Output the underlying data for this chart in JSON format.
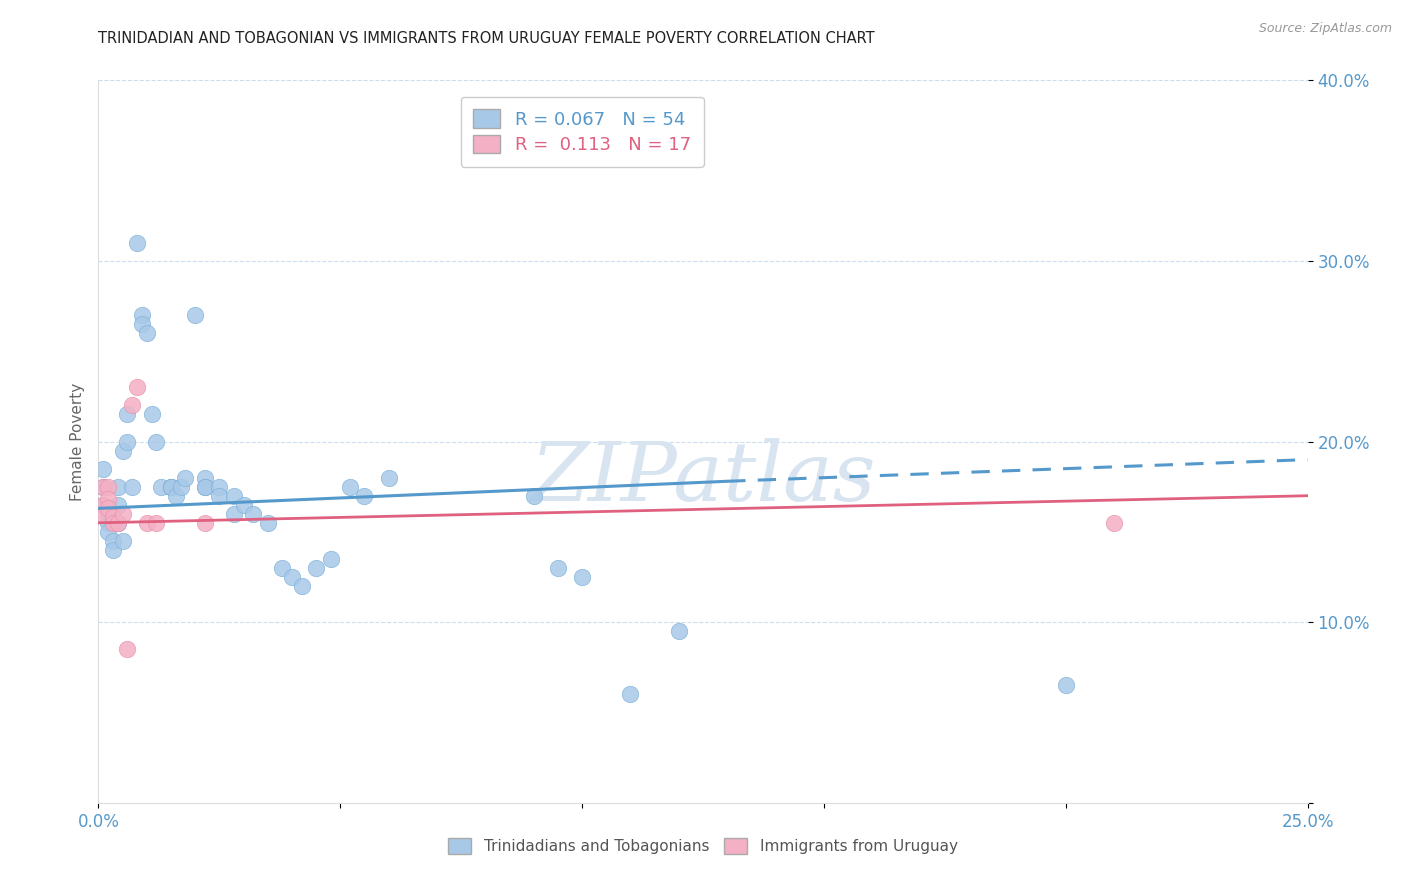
{
  "title": "TRINIDADIAN AND TOBAGONIAN VS IMMIGRANTS FROM URUGUAY FEMALE POVERTY CORRELATION CHART",
  "source": "Source: ZipAtlas.com",
  "ylabel": "Female Poverty",
  "x_min": 0.0,
  "x_max": 0.25,
  "y_min": 0.0,
  "y_max": 0.4,
  "blue_scatter": [
    [
      0.001,
      0.185
    ],
    [
      0.001,
      0.175
    ],
    [
      0.001,
      0.165
    ],
    [
      0.002,
      0.16
    ],
    [
      0.002,
      0.155
    ],
    [
      0.002,
      0.15
    ],
    [
      0.003,
      0.145
    ],
    [
      0.003,
      0.14
    ],
    [
      0.003,
      0.16
    ],
    [
      0.004,
      0.175
    ],
    [
      0.004,
      0.165
    ],
    [
      0.004,
      0.155
    ],
    [
      0.005,
      0.145
    ],
    [
      0.005,
      0.195
    ],
    [
      0.006,
      0.2
    ],
    [
      0.006,
      0.215
    ],
    [
      0.007,
      0.175
    ],
    [
      0.008,
      0.31
    ],
    [
      0.009,
      0.27
    ],
    [
      0.009,
      0.265
    ],
    [
      0.01,
      0.26
    ],
    [
      0.011,
      0.215
    ],
    [
      0.012,
      0.2
    ],
    [
      0.013,
      0.175
    ],
    [
      0.015,
      0.175
    ],
    [
      0.015,
      0.175
    ],
    [
      0.015,
      0.175
    ],
    [
      0.016,
      0.17
    ],
    [
      0.017,
      0.175
    ],
    [
      0.018,
      0.18
    ],
    [
      0.02,
      0.27
    ],
    [
      0.022,
      0.18
    ],
    [
      0.022,
      0.175
    ],
    [
      0.022,
      0.175
    ],
    [
      0.025,
      0.175
    ],
    [
      0.025,
      0.17
    ],
    [
      0.028,
      0.17
    ],
    [
      0.028,
      0.16
    ],
    [
      0.03,
      0.165
    ],
    [
      0.032,
      0.16
    ],
    [
      0.035,
      0.155
    ],
    [
      0.038,
      0.13
    ],
    [
      0.04,
      0.125
    ],
    [
      0.042,
      0.12
    ],
    [
      0.045,
      0.13
    ],
    [
      0.048,
      0.135
    ],
    [
      0.052,
      0.175
    ],
    [
      0.055,
      0.17
    ],
    [
      0.06,
      0.18
    ],
    [
      0.09,
      0.17
    ],
    [
      0.095,
      0.13
    ],
    [
      0.1,
      0.125
    ],
    [
      0.11,
      0.06
    ],
    [
      0.12,
      0.095
    ],
    [
      0.2,
      0.065
    ]
  ],
  "pink_scatter": [
    [
      0.001,
      0.175
    ],
    [
      0.001,
      0.165
    ],
    [
      0.001,
      0.16
    ],
    [
      0.002,
      0.175
    ],
    [
      0.002,
      0.168
    ],
    [
      0.002,
      0.163
    ],
    [
      0.003,
      0.158
    ],
    [
      0.003,
      0.155
    ],
    [
      0.004,
      0.155
    ],
    [
      0.005,
      0.16
    ],
    [
      0.006,
      0.085
    ],
    [
      0.007,
      0.22
    ],
    [
      0.008,
      0.23
    ],
    [
      0.01,
      0.155
    ],
    [
      0.012,
      0.155
    ],
    [
      0.022,
      0.155
    ],
    [
      0.21,
      0.155
    ]
  ],
  "blue_line_start_y": 0.163,
  "blue_line_end_solid_x": 0.13,
  "blue_line_end_solid_y": 0.178,
  "blue_line_end_dashed_x": 0.25,
  "blue_line_end_dashed_y": 0.19,
  "pink_line_start_y": 0.155,
  "pink_line_end_y": 0.17,
  "blue_line_color": "#5599cc",
  "pink_line_color": "#e06080",
  "grid_color": "#ccddee",
  "background_color": "#ffffff",
  "watermark_color": "#d8e4f0",
  "scatter_blue_face": "#a8c8e8",
  "scatter_blue_edge": "#7ab0d8",
  "scatter_pink_face": "#f4b0c4",
  "scatter_pink_edge": "#e890a8",
  "tick_color": "#5599cc",
  "title_color": "#222222",
  "ylabel_color": "#666666"
}
